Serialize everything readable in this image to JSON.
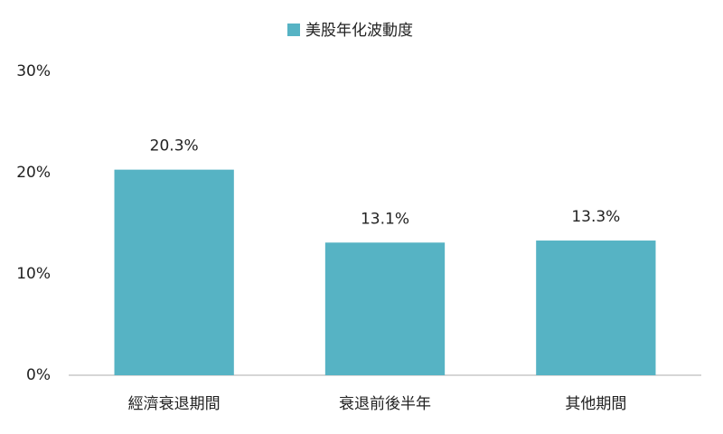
{
  "chart_data": {
    "type": "bar",
    "categories": [
      "經濟衰退期間",
      "衰退前後半年",
      "其他期間"
    ],
    "series": [
      {
        "name": "美股年化波動度",
        "color": "#56b3c4",
        "values": [
          20.3,
          13.1,
          13.3
        ],
        "value_labels": [
          "20.3%",
          "13.1%",
          "13.3%"
        ]
      }
    ],
    "ylim": [
      0,
      30
    ],
    "yticks": [
      {
        "value": 0,
        "label": "0%"
      },
      {
        "value": 10,
        "label": "10%"
      },
      {
        "value": 20,
        "label": "20%"
      },
      {
        "value": 30,
        "label": "30%"
      }
    ],
    "grid": false,
    "legend": "top"
  }
}
